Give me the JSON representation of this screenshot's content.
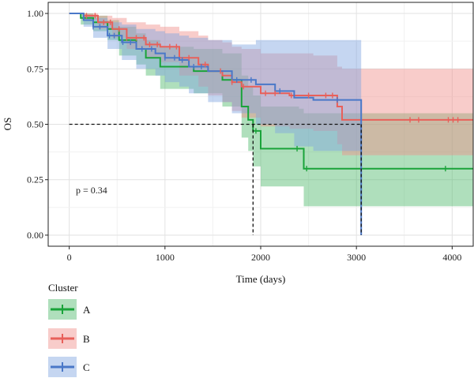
{
  "chart_data": {
    "type": "line",
    "subtype": "kaplan-meier",
    "title": "",
    "xlabel": "Time (days)",
    "ylabel": "OS",
    "xlim": [
      -220,
      4220
    ],
    "ylim": [
      -0.05,
      1.05
    ],
    "x_ticks": [
      0,
      1000,
      2000,
      3000,
      4000
    ],
    "x_tick_labels": [
      "0",
      "1000",
      "2000",
      "3000",
      "4000"
    ],
    "y_ticks": [
      0,
      0.25,
      0.5,
      0.75,
      1.0
    ],
    "y_tick_labels": [
      "0.00",
      "0.25",
      "0.50",
      "0.75",
      "1.00"
    ],
    "grid": true,
    "legend": {
      "title": "Cluster",
      "position": "bottom-left"
    },
    "annotation": "p = 0.34",
    "median_lines": {
      "y": 0.5,
      "x": [
        1920,
        3050
      ],
      "style": "dashed"
    },
    "series": [
      {
        "name": "A",
        "color": "#1aa33a",
        "band_color": "#4db86a",
        "steps": [
          [
            0,
            1.0
          ],
          [
            120,
            0.98
          ],
          [
            250,
            0.96
          ],
          [
            400,
            0.93
          ],
          [
            520,
            0.88
          ],
          [
            700,
            0.84
          ],
          [
            800,
            0.8
          ],
          [
            950,
            0.76
          ],
          [
            1300,
            0.74
          ],
          [
            1600,
            0.7
          ],
          [
            1800,
            0.58
          ],
          [
            1870,
            0.52
          ],
          [
            1920,
            0.47
          ],
          [
            2000,
            0.39
          ],
          [
            2400,
            0.39
          ],
          [
            2450,
            0.3
          ],
          [
            4220,
            0.3
          ]
        ],
        "upper": [
          [
            0,
            1.0
          ],
          [
            120,
            1.0
          ],
          [
            250,
            0.99
          ],
          [
            400,
            0.97
          ],
          [
            520,
            0.94
          ],
          [
            700,
            0.91
          ],
          [
            800,
            0.88
          ],
          [
            950,
            0.85
          ],
          [
            1300,
            0.84
          ],
          [
            1600,
            0.82
          ],
          [
            1800,
            0.72
          ],
          [
            1870,
            0.67
          ],
          [
            1920,
            0.63
          ],
          [
            2000,
            0.58
          ],
          [
            2400,
            0.57
          ],
          [
            2450,
            0.55
          ],
          [
            4220,
            0.55
          ]
        ],
        "lower": [
          [
            0,
            1.0
          ],
          [
            120,
            0.95
          ],
          [
            250,
            0.92
          ],
          [
            400,
            0.88
          ],
          [
            520,
            0.81
          ],
          [
            700,
            0.77
          ],
          [
            800,
            0.72
          ],
          [
            950,
            0.66
          ],
          [
            1300,
            0.64
          ],
          [
            1600,
            0.58
          ],
          [
            1800,
            0.44
          ],
          [
            1870,
            0.38
          ],
          [
            1920,
            0.31
          ],
          [
            2000,
            0.22
          ],
          [
            2400,
            0.22
          ],
          [
            2450,
            0.13
          ],
          [
            4220,
            0.13
          ]
        ],
        "censor_x": [
          1950,
          2380,
          2480,
          3930
        ]
      },
      {
        "name": "B",
        "color": "#e8605a",
        "band_color": "#f08f8a",
        "steps": [
          [
            0,
            1.0
          ],
          [
            150,
            0.99
          ],
          [
            300,
            0.96
          ],
          [
            450,
            0.93
          ],
          [
            600,
            0.89
          ],
          [
            800,
            0.86
          ],
          [
            950,
            0.85
          ],
          [
            1150,
            0.8
          ],
          [
            1350,
            0.77
          ],
          [
            1450,
            0.74
          ],
          [
            1600,
            0.72
          ],
          [
            1700,
            0.69
          ],
          [
            1800,
            0.67
          ],
          [
            2000,
            0.64
          ],
          [
            2300,
            0.63
          ],
          [
            2550,
            0.63
          ],
          [
            2800,
            0.58
          ],
          [
            2850,
            0.52
          ],
          [
            4220,
            0.52
          ]
        ],
        "upper": [
          [
            0,
            1.0
          ],
          [
            150,
            1.0
          ],
          [
            300,
            0.99
          ],
          [
            450,
            0.98
          ],
          [
            600,
            0.96
          ],
          [
            800,
            0.95
          ],
          [
            950,
            0.94
          ],
          [
            1150,
            0.92
          ],
          [
            1350,
            0.9
          ],
          [
            1450,
            0.88
          ],
          [
            1600,
            0.87
          ],
          [
            1700,
            0.85
          ],
          [
            1800,
            0.84
          ],
          [
            2000,
            0.82
          ],
          [
            2300,
            0.82
          ],
          [
            2550,
            0.81
          ],
          [
            2800,
            0.76
          ],
          [
            2850,
            0.75
          ],
          [
            4220,
            0.75
          ]
        ],
        "lower": [
          [
            0,
            1.0
          ],
          [
            150,
            0.97
          ],
          [
            300,
            0.93
          ],
          [
            450,
            0.89
          ],
          [
            600,
            0.84
          ],
          [
            800,
            0.8
          ],
          [
            950,
            0.78
          ],
          [
            1150,
            0.72
          ],
          [
            1350,
            0.67
          ],
          [
            1450,
            0.63
          ],
          [
            1600,
            0.6
          ],
          [
            1700,
            0.56
          ],
          [
            1800,
            0.53
          ],
          [
            2000,
            0.49
          ],
          [
            2300,
            0.48
          ],
          [
            2550,
            0.47
          ],
          [
            2800,
            0.41
          ],
          [
            2850,
            0.36
          ],
          [
            4220,
            0.36
          ]
        ],
        "censor_x": [
          180,
          270,
          360,
          430,
          520,
          600,
          700,
          780,
          840,
          920,
          1050,
          1120,
          1250,
          1420,
          1580,
          1700,
          1820,
          2050,
          2150,
          2320,
          2500,
          2680,
          2750,
          3560,
          3650,
          3960,
          4010,
          4060
        ]
      },
      {
        "name": "C",
        "color": "#4a78c8",
        "band_color": "#7ea3e0",
        "steps": [
          [
            0,
            1.0
          ],
          [
            150,
            0.97
          ],
          [
            250,
            0.94
          ],
          [
            400,
            0.9
          ],
          [
            550,
            0.87
          ],
          [
            700,
            0.84
          ],
          [
            900,
            0.82
          ],
          [
            1000,
            0.8
          ],
          [
            1150,
            0.79
          ],
          [
            1250,
            0.76
          ],
          [
            1450,
            0.74
          ],
          [
            1700,
            0.7
          ],
          [
            1950,
            0.68
          ],
          [
            2150,
            0.65
          ],
          [
            2350,
            0.62
          ],
          [
            2550,
            0.61
          ],
          [
            3050,
            0.0
          ]
        ],
        "upper": [
          [
            0,
            1.0
          ],
          [
            150,
            0.99
          ],
          [
            250,
            0.98
          ],
          [
            400,
            0.96
          ],
          [
            550,
            0.95
          ],
          [
            700,
            0.93
          ],
          [
            900,
            0.92
          ],
          [
            1000,
            0.91
          ],
          [
            1150,
            0.9
          ],
          [
            1250,
            0.89
          ],
          [
            1450,
            0.88
          ],
          [
            1700,
            0.86
          ],
          [
            1950,
            0.88
          ],
          [
            2150,
            0.88
          ],
          [
            2350,
            0.88
          ],
          [
            2550,
            0.88
          ],
          [
            3050,
            0.88
          ]
        ],
        "lower": [
          [
            0,
            1.0
          ],
          [
            150,
            0.94
          ],
          [
            250,
            0.89
          ],
          [
            400,
            0.84
          ],
          [
            550,
            0.79
          ],
          [
            700,
            0.75
          ],
          [
            900,
            0.72
          ],
          [
            1000,
            0.69
          ],
          [
            1150,
            0.67
          ],
          [
            1250,
            0.64
          ],
          [
            1450,
            0.6
          ],
          [
            1700,
            0.55
          ],
          [
            1950,
            0.5
          ],
          [
            2150,
            0.46
          ],
          [
            2350,
            0.4
          ],
          [
            2550,
            0.38
          ],
          [
            3050,
            0.38
          ]
        ],
        "censor_x": [
          250,
          320,
          420,
          470,
          560,
          640,
          760,
          860,
          1000,
          1100,
          1180,
          1300,
          1380,
          1750,
          1900,
          2200,
          2800
        ]
      }
    ]
  }
}
